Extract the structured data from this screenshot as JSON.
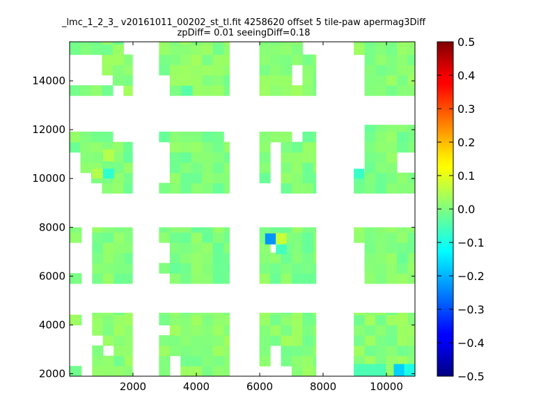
{
  "chart_data": {
    "type": "heatmap",
    "title_line1": "_lmc_1_2_3_ v20161011_00202_st_tl.fit 4258620 offset 5 tile-paw apermag3Diff",
    "title_line2": "zpDiff= 0.01 seeingDiff=0.18",
    "xlabel": "",
    "ylabel": "",
    "xlim": [
      0,
      10900
    ],
    "ylim": [
      1900,
      15600
    ],
    "x_ticks": [
      2000,
      4000,
      6000,
      8000,
      10000
    ],
    "y_ticks": [
      2000,
      4000,
      6000,
      8000,
      10000,
      12000,
      14000
    ],
    "colorbar": {
      "range": [
        -0.5,
        0.5
      ],
      "ticks": [
        -0.5,
        -0.4,
        -0.3,
        -0.2,
        -0.1,
        0.0,
        0.1,
        0.2,
        0.3,
        0.4,
        0.5
      ],
      "tick_labels": [
        "−0.5",
        "−0.4",
        "−0.3",
        "−0.2",
        "−0.1",
        "0.0",
        "0.1",
        "0.2",
        "0.3",
        "0.4",
        "0.5"
      ],
      "colormap": "jet"
    },
    "cell_size": [
      340,
      420
    ],
    "base_value": 0.0,
    "row_bands": [
      {
        "y_range": [
          1900,
          4500
        ],
        "segments": [
          [
            0,
            370
          ],
          [
            710,
            1980
          ],
          [
            2820,
            5040
          ],
          [
            5990,
            7770
          ],
          [
            8970,
            10900
          ]
        ],
        "value": 0.01
      },
      {
        "y_range": [
          5700,
          8000
        ],
        "segments": [
          [
            0,
            370
          ],
          [
            710,
            1980
          ],
          [
            2820,
            5040
          ],
          [
            5990,
            7770
          ],
          [
            8970,
            10900
          ]
        ],
        "value": 0.0
      },
      {
        "y_range": [
          9400,
          12200
        ],
        "segments": [
          [
            0,
            1980
          ],
          [
            2820,
            5040
          ],
          [
            5990,
            7770
          ],
          [
            8970,
            10900
          ]
        ],
        "value": 0.0
      },
      {
        "y_range": [
          13400,
          15600
        ],
        "segments": [
          [
            0,
            1980
          ],
          [
            2820,
            5040
          ],
          [
            5990,
            7770
          ],
          [
            8970,
            10900
          ]
        ],
        "value": 0.01
      }
    ],
    "holes": [
      [
        0,
        370,
        2300,
        3900
      ],
      [
        370,
        710,
        1900,
        4500
      ],
      [
        0,
        370,
        4300,
        4500
      ],
      [
        710,
        1050,
        3100,
        3600
      ],
      [
        1050,
        1400,
        2700,
        3200
      ],
      [
        2820,
        3190,
        3600,
        3900
      ],
      [
        3190,
        3530,
        1900,
        2800
      ],
      [
        5990,
        6340,
        1900,
        2400
      ],
      [
        6340,
        6680,
        2400,
        3300
      ],
      [
        6340,
        7030,
        1900,
        2400
      ],
      [
        7500,
        7770,
        1900,
        2000
      ],
      [
        370,
        710,
        5700,
        8000
      ],
      [
        0,
        370,
        5700,
        5800
      ],
      [
        0,
        370,
        6200,
        7400
      ],
      [
        2820,
        3190,
        5700,
        6000
      ],
      [
        2820,
        3190,
        6400,
        7400
      ],
      [
        3530,
        3880,
        5700,
        5900
      ],
      [
        3880,
        5040,
        5700,
        5900
      ],
      [
        5990,
        7030,
        5700,
        5800
      ],
      [
        6340,
        6680,
        6900,
        7400
      ],
      [
        7770,
        7770,
        5700,
        5700
      ],
      [
        9650,
        10000,
        5700,
        5900
      ],
      [
        8970,
        9300,
        5700,
        7400
      ],
      [
        0,
        710,
        9400,
        10400
      ],
      [
        0,
        370,
        10400,
        11200
      ],
      [
        710,
        1050,
        9400,
        9800
      ],
      [
        2820,
        3190,
        9800,
        11300
      ],
      [
        5990,
        6680,
        9400,
        9800
      ],
      [
        6340,
        6680,
        9800,
        11300
      ],
      [
        7030,
        7370,
        11300,
        12200
      ],
      [
        7770,
        7770,
        9400,
        9400
      ],
      [
        8970,
        9300,
        10400,
        12200
      ],
      [
        10230,
        10900,
        10400,
        11200
      ],
      [
        5040,
        5040,
        9400,
        9400
      ],
      [
        1050,
        1400,
        11800,
        12200
      ],
      [
        0,
        1050,
        11800,
        12200
      ],
      [
        2820,
        5040,
        11800,
        12200
      ],
      [
        4700,
        5040,
        11300,
        11800
      ],
      [
        5990,
        7770,
        11800,
        12200
      ],
      [
        7770,
        7770,
        11300,
        11800
      ],
      [
        1400,
        1980,
        11300,
        12200
      ],
      [
        0,
        1050,
        13400,
        13500
      ],
      [
        0,
        1050,
        13800,
        15200
      ],
      [
        1050,
        1400,
        13900,
        14400
      ],
      [
        1400,
        1730,
        13400,
        13800
      ],
      [
        1980,
        1980,
        14400,
        14800
      ],
      [
        2440,
        2820,
        13400,
        15600
      ],
      [
        1730,
        1980,
        15200,
        15600
      ],
      [
        5990,
        7770,
        13400,
        13500
      ],
      [
        7370,
        7770,
        15200,
        15600
      ],
      [
        7030,
        7370,
        14000,
        14500
      ],
      [
        8970,
        9300,
        13400,
        15200
      ],
      [
        2820,
        3190,
        13400,
        14300
      ]
    ],
    "highlight_cells": [
      {
        "x": [
          6170,
          6510
        ],
        "y": [
          7300,
          7750
        ],
        "value": -0.23
      },
      {
        "x": [
          6510,
          6850
        ],
        "y": [
          7300,
          7750
        ],
        "value": 0.07
      },
      {
        "x": [
          6510,
          6850
        ],
        "y": [
          6900,
          7300
        ],
        "value": -0.06
      },
      {
        "x": [
          1050,
          1400
        ],
        "y": [
          10000,
          10400
        ],
        "value": -0.08
      },
      {
        "x": [
          710,
          1050
        ],
        "y": [
          10000,
          10400
        ],
        "value": 0.05
      },
      {
        "x": [
          8970,
          9300
        ],
        "y": [
          10000,
          10400
        ],
        "value": -0.07
      },
      {
        "x": [
          1050,
          1400
        ],
        "y": [
          10700,
          11200
        ],
        "value": 0.05
      },
      {
        "x": [
          10230,
          10560
        ],
        "y": [
          1900,
          2400
        ],
        "value": -0.17
      },
      {
        "x": [
          10560,
          10900
        ],
        "y": [
          1900,
          2400
        ],
        "value": -0.1
      },
      {
        "x": [
          8970,
          9980
        ],
        "y": [
          1900,
          2400
        ],
        "value": -0.05
      },
      {
        "x": [
          3530,
          3880
        ],
        "y": [
          13400,
          13800
        ],
        "value": -0.04
      }
    ]
  }
}
